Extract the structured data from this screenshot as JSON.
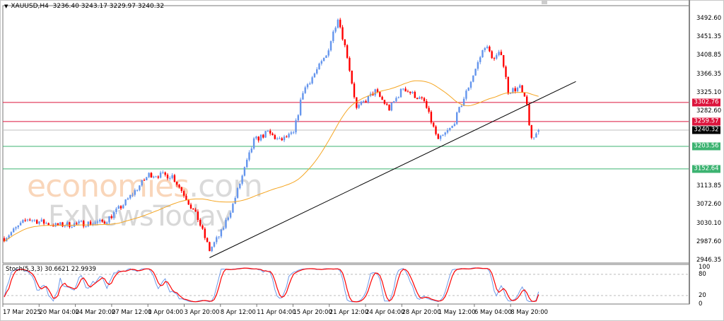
{
  "header": {
    "symbol": "XAUUSD,H4",
    "ohlc": "3236.40 3243.17 3229.97 3240.32"
  },
  "watermark": {
    "brand": "economies",
    "domain": ".com",
    "brand2": "FxNewsToday"
  },
  "price_axis": [
    "3492.60",
    "3451.35",
    "3408.85",
    "3366.35",
    "3325.10",
    "3282.60",
    "3113.85",
    "3072.60",
    "3030.10",
    "2987.60",
    "2946.35"
  ],
  "levels": [
    {
      "label": "3302.76",
      "price": 3302.76,
      "color": "#dc143c"
    },
    {
      "label": "3259.57",
      "price": 3259.57,
      "color": "#dc143c"
    },
    {
      "label": "3240.32",
      "price": 3240.32,
      "color": "#000000",
      "line": "#c0c0c0"
    },
    {
      "label": "3203.56",
      "price": 3203.56,
      "color": "#3cb371"
    },
    {
      "label": "3152.64",
      "price": 3152.64,
      "color": "#3cb371"
    }
  ],
  "oscillator": {
    "label": "Stoch(5,3,3) 30.6621 22.9939",
    "levels": [
      "100",
      "80",
      "20",
      "0"
    ]
  },
  "time_axis": [
    "17 Mar 2025",
    "20 Mar 04:00",
    "24 Mar 20:00",
    "27 Mar 12:00",
    "1 Apr 04:00",
    "3 Apr 20:00",
    "8 Apr 12:00",
    "11 Apr 04:00",
    "15 Apr 20:00",
    "21 Apr 12:00",
    "24 Apr 04:00",
    "28 Apr 20:00",
    "1 May 12:00",
    "6 May 04:00",
    "8 May 20:00"
  ],
  "colors": {
    "bull": "#6495ed",
    "bear": "#ff0000",
    "ma": "#f5a623",
    "stoch_main": "#6f9ae8",
    "stoch_signal": "#ff0000"
  },
  "chart_data": {
    "type": "candlestick",
    "symbol": "XAUUSD",
    "timeframe": "H4",
    "candle_count": 230,
    "keypoints": [
      [
        0,
        2996
      ],
      [
        10,
        3040
      ],
      [
        22,
        3025
      ],
      [
        43,
        3033
      ],
      [
        51,
        3072
      ],
      [
        62,
        3140
      ],
      [
        72,
        3137
      ],
      [
        77,
        3096
      ],
      [
        83,
        3040
      ],
      [
        88,
        2969
      ],
      [
        93,
        3009
      ],
      [
        98,
        3072
      ],
      [
        107,
        3216
      ],
      [
        113,
        3235
      ],
      [
        118,
        3216
      ],
      [
        124,
        3232
      ],
      [
        128,
        3328
      ],
      [
        138,
        3408
      ],
      [
        143,
        3496
      ],
      [
        147,
        3408
      ],
      [
        151,
        3288
      ],
      [
        159,
        3328
      ],
      [
        165,
        3288
      ],
      [
        171,
        3336
      ],
      [
        180,
        3304
      ],
      [
        186,
        3216
      ],
      [
        192,
        3248
      ],
      [
        197,
        3312
      ],
      [
        206,
        3432
      ],
      [
        210,
        3400
      ],
      [
        213,
        3416
      ],
      [
        216,
        3328
      ],
      [
        221,
        3336
      ],
      [
        224,
        3296
      ],
      [
        226,
        3216
      ],
      [
        229,
        3240
      ]
    ],
    "ma_period": 50,
    "trendline": [
      [
        88,
        2952
      ],
      [
        245,
        3350
      ]
    ],
    "ylim": [
      2946.35,
      3492.6
    ],
    "stochastic": {
      "k": 5,
      "d": 3,
      "slowing": 3,
      "main": 30.6621,
      "signal": 22.9939
    }
  }
}
